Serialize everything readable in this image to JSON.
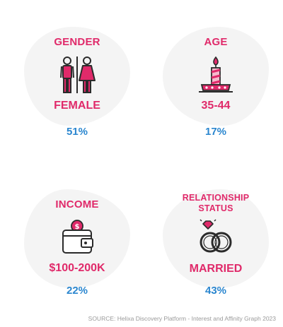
{
  "colors": {
    "accent": "#e02a6a",
    "percent": "#2a86cf",
    "dark": "#2b2b2b"
  },
  "cards": [
    {
      "label": "GENDER",
      "value": "FEMALE",
      "percent": "51%",
      "icon": "restroom-icon"
    },
    {
      "label": "AGE",
      "value": "35-44",
      "percent": "17%",
      "icon": "birthday-candle-icon"
    },
    {
      "label": "INCOME",
      "value": "$100-200K",
      "percent": "22%",
      "icon": "wallet-icon"
    },
    {
      "label_line1": "RELATIONSHIP",
      "label_line2": "STATUS",
      "value": "MARRIED",
      "percent": "43%",
      "icon": "wedding-rings-icon"
    }
  ],
  "source": "SOURCE: Helixa Discovery Platform - Interest and Affinity Graph 2023"
}
